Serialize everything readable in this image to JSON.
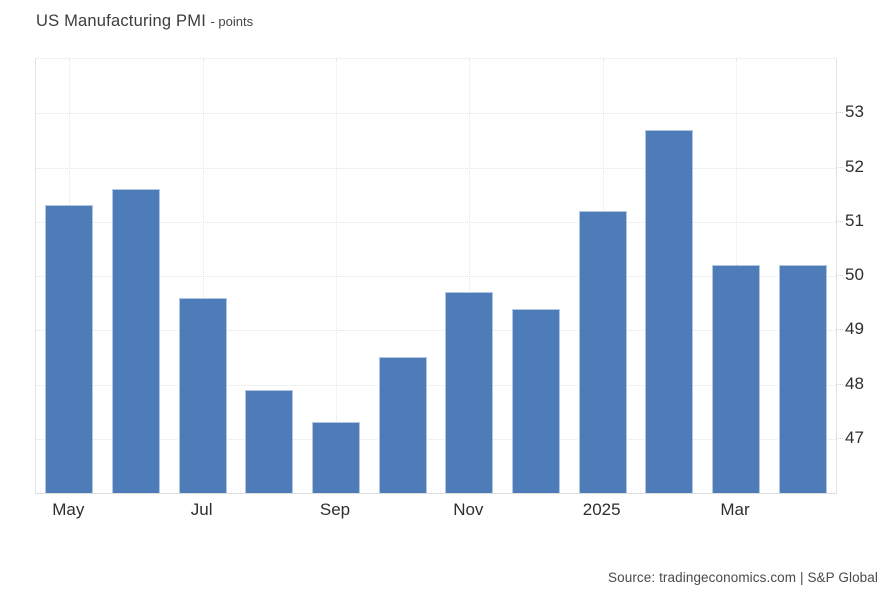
{
  "header": {
    "title": "US Manufacturing PMI",
    "title_suffix": "- points"
  },
  "footer": {
    "source": "Source: tradingeconomics.com | S&P Global"
  },
  "chart_data": {
    "type": "bar",
    "title": "US Manufacturing PMI",
    "unit": "points",
    "values": [
      51.3,
      51.6,
      49.6,
      47.9,
      47.3,
      48.5,
      49.7,
      49.4,
      51.2,
      52.7,
      50.2,
      50.2
    ],
    "x_tick_labels": [
      {
        "index": 0,
        "label": "May"
      },
      {
        "index": 2,
        "label": "Jul"
      },
      {
        "index": 4,
        "label": "Sep"
      },
      {
        "index": 6,
        "label": "Nov"
      },
      {
        "index": 8,
        "label": "2025"
      },
      {
        "index": 10,
        "label": "Mar"
      }
    ],
    "y_ticks": [
      47,
      48,
      49,
      50,
      51,
      52,
      53
    ],
    "ylim": [
      46,
      54
    ],
    "y_axis_side": "right",
    "grid": "dotted",
    "legend_position": "none",
    "bar_color": "#4d7cb8",
    "source": "Source: tradingeconomics.com | S&P Global"
  }
}
